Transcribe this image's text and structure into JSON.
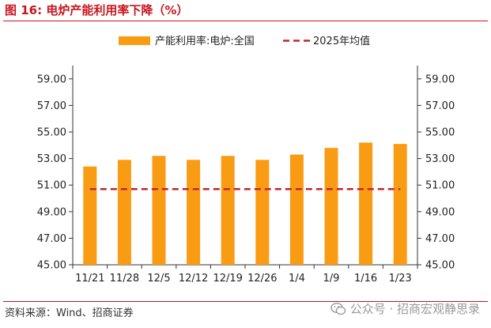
{
  "figure": {
    "title": "图 16:  电炉产能利用率下降（%）",
    "source": "资料来源：Wind、招商证券",
    "watermark": "公众号 · 招商宏观静思录"
  },
  "colors": {
    "bar": "#fa9b14",
    "avg_line": "#c0272d",
    "title": "#c8161e"
  },
  "chart_data": {
    "type": "bar",
    "categories": [
      "11/21",
      "11/28",
      "12/5",
      "12/12",
      "12/19",
      "12/26",
      "1/4",
      "1/9",
      "1/16",
      "1/23"
    ],
    "series": [
      {
        "name": "产能利用率:电炉:全国",
        "kind": "bar",
        "values": [
          52.4,
          52.9,
          53.2,
          52.9,
          53.2,
          52.9,
          53.3,
          53.8,
          54.2,
          54.1
        ]
      },
      {
        "name": "2025年均值",
        "kind": "dashed-line",
        "values": [
          50.7,
          50.7,
          50.7,
          50.7,
          50.7,
          50.7,
          50.7,
          50.7,
          50.7,
          50.7
        ]
      }
    ],
    "ylim": [
      45,
      60
    ],
    "yticks": [
      "45.00",
      "47.00",
      "49.00",
      "51.00",
      "53.00",
      "55.00",
      "57.00",
      "59.00"
    ],
    "y2ticks": [
      "45.00",
      "47.00",
      "49.00",
      "51.00",
      "53.00",
      "55.00",
      "57.00",
      "59.00"
    ],
    "title": "电炉产能利用率下降（%）",
    "xlabel": "",
    "ylabel": "",
    "legend_position": "top"
  }
}
